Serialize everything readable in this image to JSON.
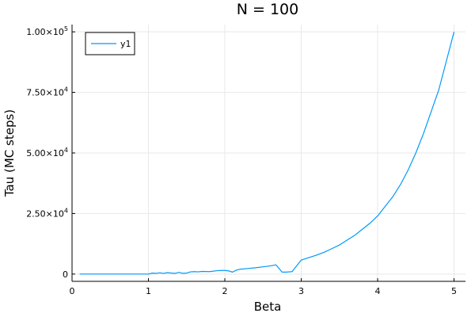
{
  "chart_data": {
    "type": "line",
    "title": "N = 100",
    "xlabel": "Beta",
    "ylabel": "Tau (MC steps)",
    "xlim": [
      0,
      5.15
    ],
    "ylim": [
      -3000,
      103000
    ],
    "x_ticks": [
      {
        "value": 0,
        "label": "0"
      },
      {
        "value": 1,
        "label": "1"
      },
      {
        "value": 2,
        "label": "2"
      },
      {
        "value": 3,
        "label": "3"
      },
      {
        "value": 4,
        "label": "4"
      },
      {
        "value": 5,
        "label": "5"
      }
    ],
    "y_ticks": [
      {
        "value": 0,
        "mantissa": "0",
        "exponent": ""
      },
      {
        "value": 25000,
        "mantissa": "2.50×10",
        "exponent": "4"
      },
      {
        "value": 50000,
        "mantissa": "5.00×10",
        "exponent": "4"
      },
      {
        "value": 75000,
        "mantissa": "7.50×10",
        "exponent": "4"
      },
      {
        "value": 100000,
        "mantissa": "1.00×10",
        "exponent": "5"
      }
    ],
    "grid": true,
    "legend_position": "top-left",
    "series": [
      {
        "name": "y1",
        "color": "#009af9",
        "x": [
          0.1,
          0.2,
          0.3,
          0.4,
          0.5,
          0.6,
          0.7,
          0.8,
          0.9,
          1.0,
          1.05,
          1.1,
          1.15,
          1.2,
          1.25,
          1.3,
          1.35,
          1.4,
          1.45,
          1.5,
          1.55,
          1.6,
          1.65,
          1.7,
          1.8,
          1.9,
          1.95,
          2.0,
          2.05,
          2.1,
          2.15,
          2.2,
          2.3,
          2.4,
          2.5,
          2.6,
          2.67,
          2.75,
          2.8,
          2.88,
          3.0,
          3.1,
          3.2,
          3.3,
          3.4,
          3.5,
          3.6,
          3.7,
          3.8,
          3.9,
          4.0,
          4.1,
          4.2,
          4.3,
          4.4,
          4.5,
          4.6,
          4.7,
          4.8,
          4.9,
          5.0
        ],
        "y": [
          0,
          0,
          0,
          0,
          0,
          0,
          0,
          0,
          0,
          0,
          400,
          300,
          500,
          300,
          600,
          400,
          300,
          700,
          300,
          400,
          900,
          1000,
          900,
          1100,
          1000,
          1400,
          1500,
          1500,
          1300,
          800,
          1600,
          2000,
          2300,
          2600,
          3000,
          3400,
          3800,
          800,
          800,
          1000,
          5800,
          6800,
          7800,
          9000,
          10500,
          12000,
          14000,
          16000,
          18500,
          21000,
          24000,
          28000,
          32000,
          37000,
          43000,
          50000,
          58000,
          67000,
          76000,
          88000,
          100000
        ]
      }
    ]
  }
}
